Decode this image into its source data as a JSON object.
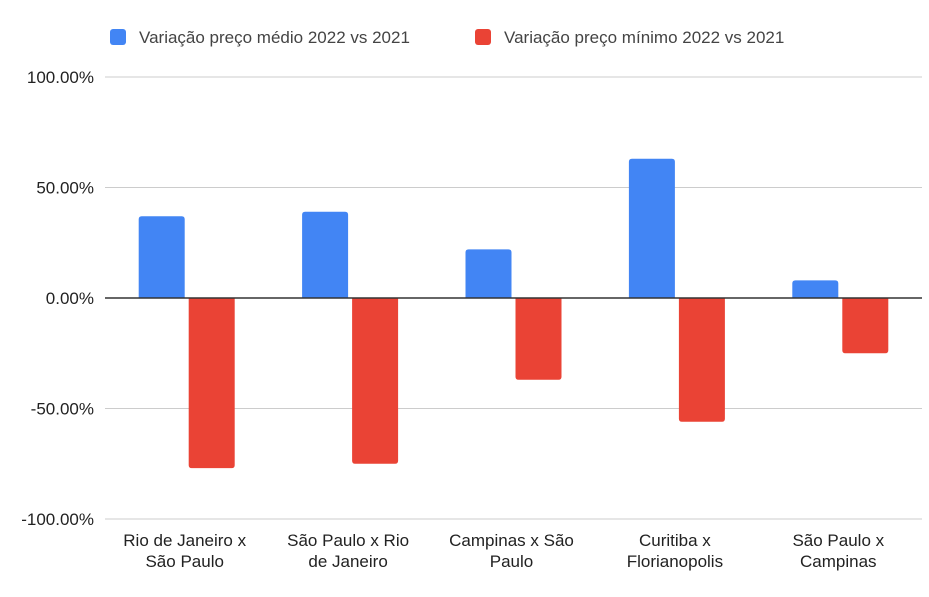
{
  "chart_data": {
    "type": "bar",
    "categories": [
      [
        "Rio de Janeiro x",
        "São Paulo"
      ],
      [
        "São Paulo x Rio",
        "de Janeiro"
      ],
      [
        "Campinas x São",
        "Paulo"
      ],
      [
        "Curitiba x",
        "Florianopolis"
      ],
      [
        "São Paulo x",
        "Campinas"
      ]
    ],
    "series": [
      {
        "name": "Variação preço médio 2022 vs 2021",
        "color": "#4285F4",
        "values": [
          37.0,
          39.0,
          22.0,
          63.0,
          8.0
        ]
      },
      {
        "name": "Variação preço mínimo 2022 vs 2021",
        "color": "#EA4335",
        "values": [
          -77.0,
          -75.0,
          -37.0,
          -56.0,
          -25.0
        ]
      }
    ],
    "ylim": [
      -100,
      100
    ],
    "yticks": [
      100,
      50,
      0,
      -50,
      -100
    ],
    "ytick_labels": [
      "100.00%",
      "50.00%",
      "0.00%",
      "-50.00%",
      "-100.00%"
    ],
    "grid": true,
    "legend_position": "top-left"
  }
}
